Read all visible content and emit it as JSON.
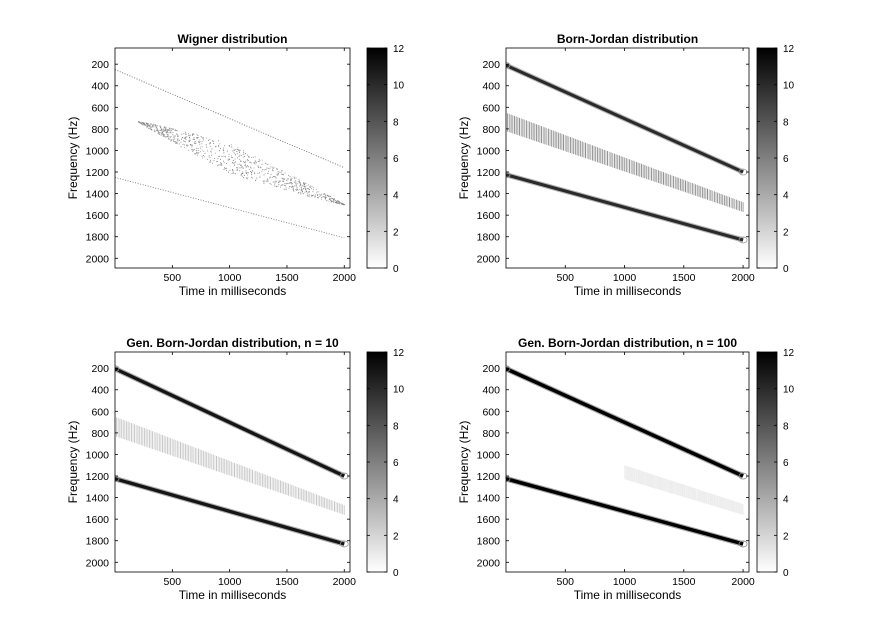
{
  "chart_data": [
    {
      "type": "heatmap",
      "title": "Wigner distribution",
      "xlabel": "Time in milliseconds",
      "ylabel": "Frequency (Hz)",
      "xlim": [
        0,
        2050
      ],
      "ylim": [
        2090,
        50
      ],
      "xticks": [
        "500",
        "1000",
        "1500",
        "2000"
      ],
      "yticks": [
        "200",
        "400",
        "600",
        "800",
        "1000",
        "1200",
        "1400",
        "1600",
        "1800",
        "2000"
      ],
      "colorbar": {
        "range": [
          0,
          12
        ],
        "ticks": [
          "0",
          "2",
          "4",
          "6",
          "8",
          "10",
          "12"
        ],
        "colormap": "white-to-black"
      },
      "components": [
        {
          "kind": "chirp",
          "t": [
            0,
            2000
          ],
          "f": [
            250,
            1160
          ],
          "intensity": 7,
          "style": "dotted"
        },
        {
          "kind": "chirp",
          "t": [
            0,
            2000
          ],
          "f": [
            1250,
            1810
          ],
          "intensity": 6,
          "style": "dotted"
        },
        {
          "kind": "interference",
          "t": [
            200,
            2000
          ],
          "f_upper": [
            730,
            1500
          ],
          "f_lower": [
            730,
            1500
          ],
          "max_halfwidth_hz": 140,
          "peak_t": 1000,
          "intensity": 4
        }
      ]
    },
    {
      "type": "heatmap",
      "title": "Born-Jordan distribution",
      "xlabel": "Time in milliseconds",
      "ylabel": "Frequency (Hz)",
      "xlim": [
        0,
        2050
      ],
      "ylim": [
        2090,
        50
      ],
      "xticks": [
        "500",
        "1000",
        "1500",
        "2000"
      ],
      "yticks": [
        "200",
        "400",
        "600",
        "800",
        "1000",
        "1200",
        "1400",
        "1600",
        "1800",
        "2000"
      ],
      "colorbar": {
        "range": [
          0,
          12
        ],
        "ticks": [
          "0",
          "2",
          "4",
          "6",
          "8",
          "10",
          "12"
        ],
        "colormap": "white-to-black"
      },
      "components": [
        {
          "kind": "chirp",
          "t": [
            0,
            2000
          ],
          "f": [
            210,
            1200
          ],
          "intensity": 10,
          "style": "solid"
        },
        {
          "kind": "chirp",
          "t": [
            0,
            2000
          ],
          "f": [
            1225,
            1830
          ],
          "intensity": 10,
          "style": "solid"
        },
        {
          "kind": "interference",
          "t": [
            0,
            2000
          ],
          "f_upper": [
            650,
            1480
          ],
          "f_lower": [
            820,
            1570
          ],
          "intensity": 6
        }
      ]
    },
    {
      "type": "heatmap",
      "title": "Gen. Born-Jordan distribution, n = 10",
      "xlabel": "Time in milliseconds",
      "ylabel": "Frequency (Hz)",
      "xlim": [
        0,
        2050
      ],
      "ylim": [
        2090,
        50
      ],
      "xticks": [
        "500",
        "1000",
        "1500",
        "2000"
      ],
      "yticks": [
        "200",
        "400",
        "600",
        "800",
        "1000",
        "1200",
        "1400",
        "1600",
        "1800",
        "2000"
      ],
      "colorbar": {
        "range": [
          0,
          12
        ],
        "ticks": [
          "0",
          "2",
          "4",
          "6",
          "8",
          "10",
          "12"
        ],
        "colormap": "white-to-black"
      },
      "components": [
        {
          "kind": "chirp",
          "t": [
            0,
            2000
          ],
          "f": [
            205,
            1200
          ],
          "intensity": 11,
          "style": "solid"
        },
        {
          "kind": "chirp",
          "t": [
            0,
            2000
          ],
          "f": [
            1225,
            1830
          ],
          "intensity": 11,
          "style": "solid"
        },
        {
          "kind": "interference",
          "t": [
            0,
            2000
          ],
          "f_upper": [
            650,
            1470
          ],
          "f_lower": [
            830,
            1560
          ],
          "intensity": 3
        }
      ]
    },
    {
      "type": "heatmap",
      "title": "Gen. Born-Jordan distribution, n = 100",
      "xlabel": "Time in milliseconds",
      "ylabel": "Frequency (Hz)",
      "xlim": [
        0,
        2050
      ],
      "ylim": [
        2090,
        50
      ],
      "xticks": [
        "500",
        "1000",
        "1500",
        "2000"
      ],
      "yticks": [
        "200",
        "400",
        "600",
        "800",
        "1000",
        "1200",
        "1400",
        "1600",
        "1800",
        "2000"
      ],
      "colorbar": {
        "range": [
          0,
          12
        ],
        "ticks": [
          "0",
          "2",
          "4",
          "6",
          "8",
          "10",
          "12"
        ],
        "colormap": "white-to-black"
      },
      "components": [
        {
          "kind": "chirp",
          "t": [
            0,
            2000
          ],
          "f": [
            205,
            1200
          ],
          "intensity": 12,
          "style": "solid"
        },
        {
          "kind": "chirp",
          "t": [
            0,
            2000
          ],
          "f": [
            1225,
            1830
          ],
          "intensity": 12,
          "style": "solid"
        },
        {
          "kind": "interference",
          "t": [
            1000,
            2000
          ],
          "f_upper": [
            1100,
            1460
          ],
          "f_lower": [
            1230,
            1560
          ],
          "intensity": 1
        }
      ]
    }
  ]
}
